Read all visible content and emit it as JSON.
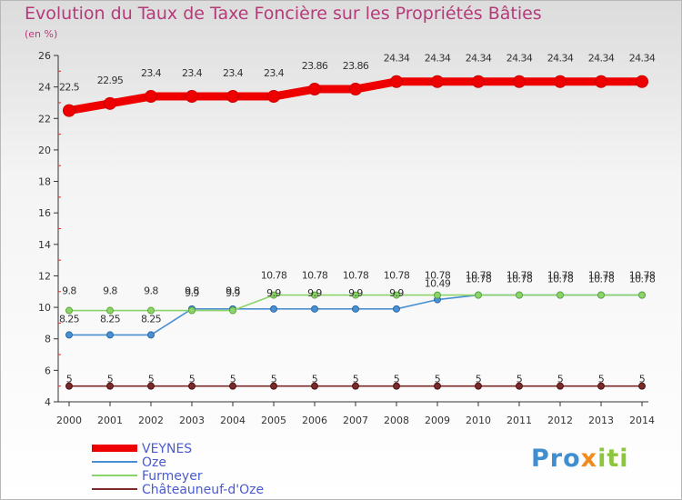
{
  "title": "Evolution du Taux de Taxe Foncière sur les Propriétés Bâties",
  "subtitle": "(en %)",
  "logo": {
    "text": "Proxiti",
    "colors": [
      "#3f8fd0",
      "#f08c1e",
      "#8cc63f"
    ]
  },
  "chart_data": {
    "type": "line",
    "title": "Evolution du Taux de Taxe Foncière sur les Propriétés Bâties",
    "ylabel": "(en %)",
    "xlabel": "",
    "x": [
      "2000",
      "2001",
      "2002",
      "2003",
      "2004",
      "2005",
      "2006",
      "2007",
      "2008",
      "2009",
      "2010",
      "2011",
      "2012",
      "2013",
      "2014"
    ],
    "ylim": [
      4,
      26
    ],
    "yticks": [
      "4",
      "6",
      "8",
      "10",
      "12",
      "14",
      "16",
      "18",
      "20",
      "22",
      "24",
      "26"
    ],
    "grid": false,
    "legend_placement": "bottom-left",
    "series": [
      {
        "name": "VEYNES",
        "color": "#ee0000",
        "values": [
          22.5,
          22.95,
          23.4,
          23.4,
          23.4,
          23.4,
          23.86,
          23.86,
          24.34,
          24.34,
          24.34,
          24.34,
          24.34,
          24.34,
          24.34
        ],
        "labels": [
          "22.5",
          "22.95",
          "23.4",
          "23.4",
          "23.4",
          "23.4",
          "23.86",
          "23.86",
          "24.34",
          "24.34",
          "24.34",
          "24.34",
          "24.34",
          "24.34",
          "24.34"
        ]
      },
      {
        "name": "Oze",
        "color": "#4a90d0",
        "values": [
          8.25,
          8.25,
          8.25,
          9.9,
          9.9,
          9.9,
          9.9,
          9.9,
          9.9,
          10.49,
          10.78,
          10.78,
          10.78,
          10.78,
          10.78
        ],
        "labels": [
          "8.25",
          "8.25",
          "8.25",
          "9.9",
          "9.9",
          "9.9",
          "9.9",
          "9.9",
          "9.9",
          "10.49",
          "10.78",
          "10.78",
          "10.78",
          "10.78",
          "10.78"
        ]
      },
      {
        "name": "Furmeyer",
        "color": "#8cd46a",
        "values": [
          9.8,
          9.8,
          9.8,
          9.8,
          9.8,
          10.78,
          10.78,
          10.78,
          10.78,
          10.78,
          10.78,
          10.78,
          10.78,
          10.78,
          10.78
        ],
        "labels": [
          "9.8",
          "9.8",
          "9.8",
          "9.8",
          "9.8",
          "10.78",
          "10.78",
          "10.78",
          "10.78",
          "10.78",
          "10.78",
          "10.78",
          "10.78",
          "10.78",
          "10.78"
        ]
      },
      {
        "name": "Châteauneuf-d'Oze",
        "color": "#7a2a2a",
        "values": [
          5,
          5,
          5,
          5,
          5,
          5,
          5,
          5,
          5,
          5,
          5,
          5,
          5,
          5,
          5
        ],
        "labels": [
          "5",
          "5",
          "5",
          "5",
          "5",
          "5",
          "5",
          "5",
          "5",
          "5",
          "5",
          "5",
          "5",
          "5",
          "5"
        ]
      }
    ]
  }
}
